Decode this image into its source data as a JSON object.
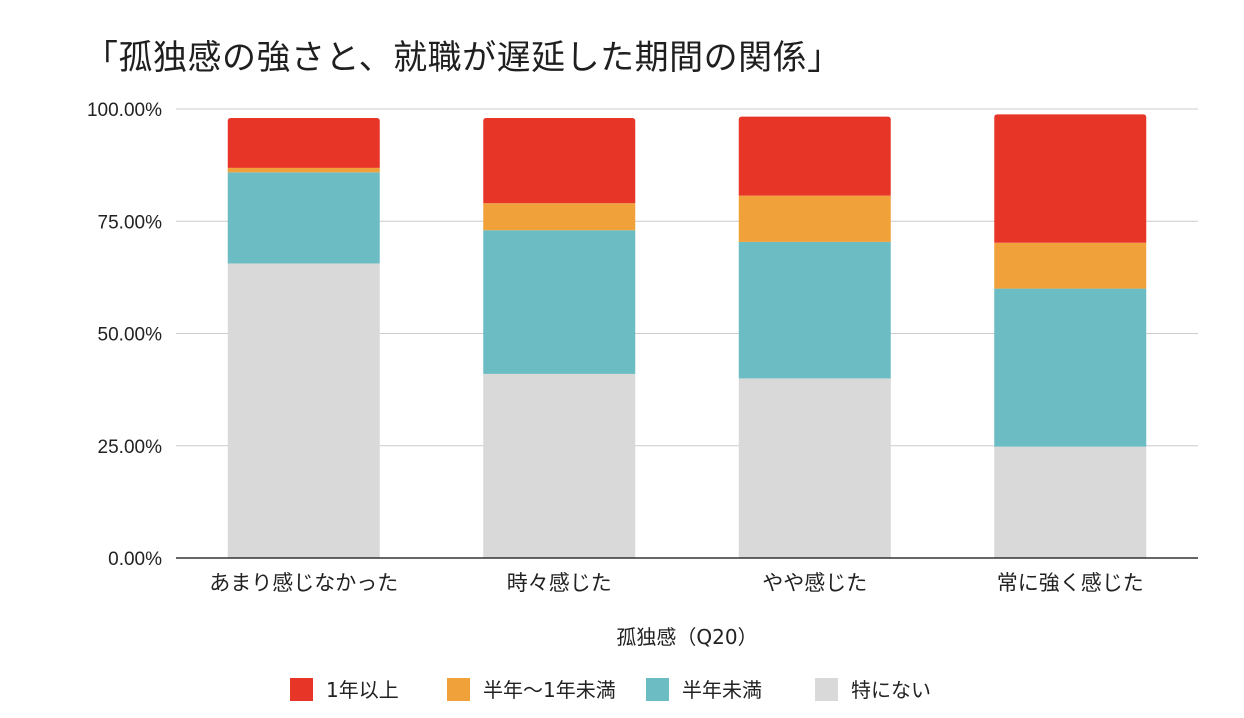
{
  "chart_data": {
    "type": "bar",
    "stacked": true,
    "title": "「孤独感の強さと、就職が遅延した期間の関係」",
    "xlabel": "孤独感（Q20）",
    "ylabel": "",
    "ylim": [
      0,
      100
    ],
    "yticks": [
      "0.00%",
      "25.00%",
      "50.00%",
      "75.00%",
      "100.00%"
    ],
    "ytick_values": [
      0,
      25,
      50,
      75,
      100
    ],
    "grid": true,
    "legend_position": "bottom",
    "categories": [
      "あまり感じなかった",
      "時々感じた",
      "やや感じた",
      "常に強く感じた"
    ],
    "series": [
      {
        "name": "特にない",
        "color": "#d9d9d9",
        "values": [
          65.6,
          41.0,
          40.0,
          24.8
        ]
      },
      {
        "name": "半年未満",
        "color": "#6cbcc4",
        "values": [
          20.3,
          32.0,
          30.4,
          35.2
        ]
      },
      {
        "name": "半年〜1年未満",
        "color": "#f0a13a",
        "values": [
          1.0,
          6.0,
          10.3,
          10.2
        ]
      },
      {
        "name": "1年以上",
        "color": "#e73628",
        "values": [
          11.1,
          19.0,
          17.6,
          28.6
        ]
      }
    ],
    "legend_order": [
      "1年以上",
      "半年〜1年未満",
      "半年未満",
      "特にない"
    ]
  }
}
